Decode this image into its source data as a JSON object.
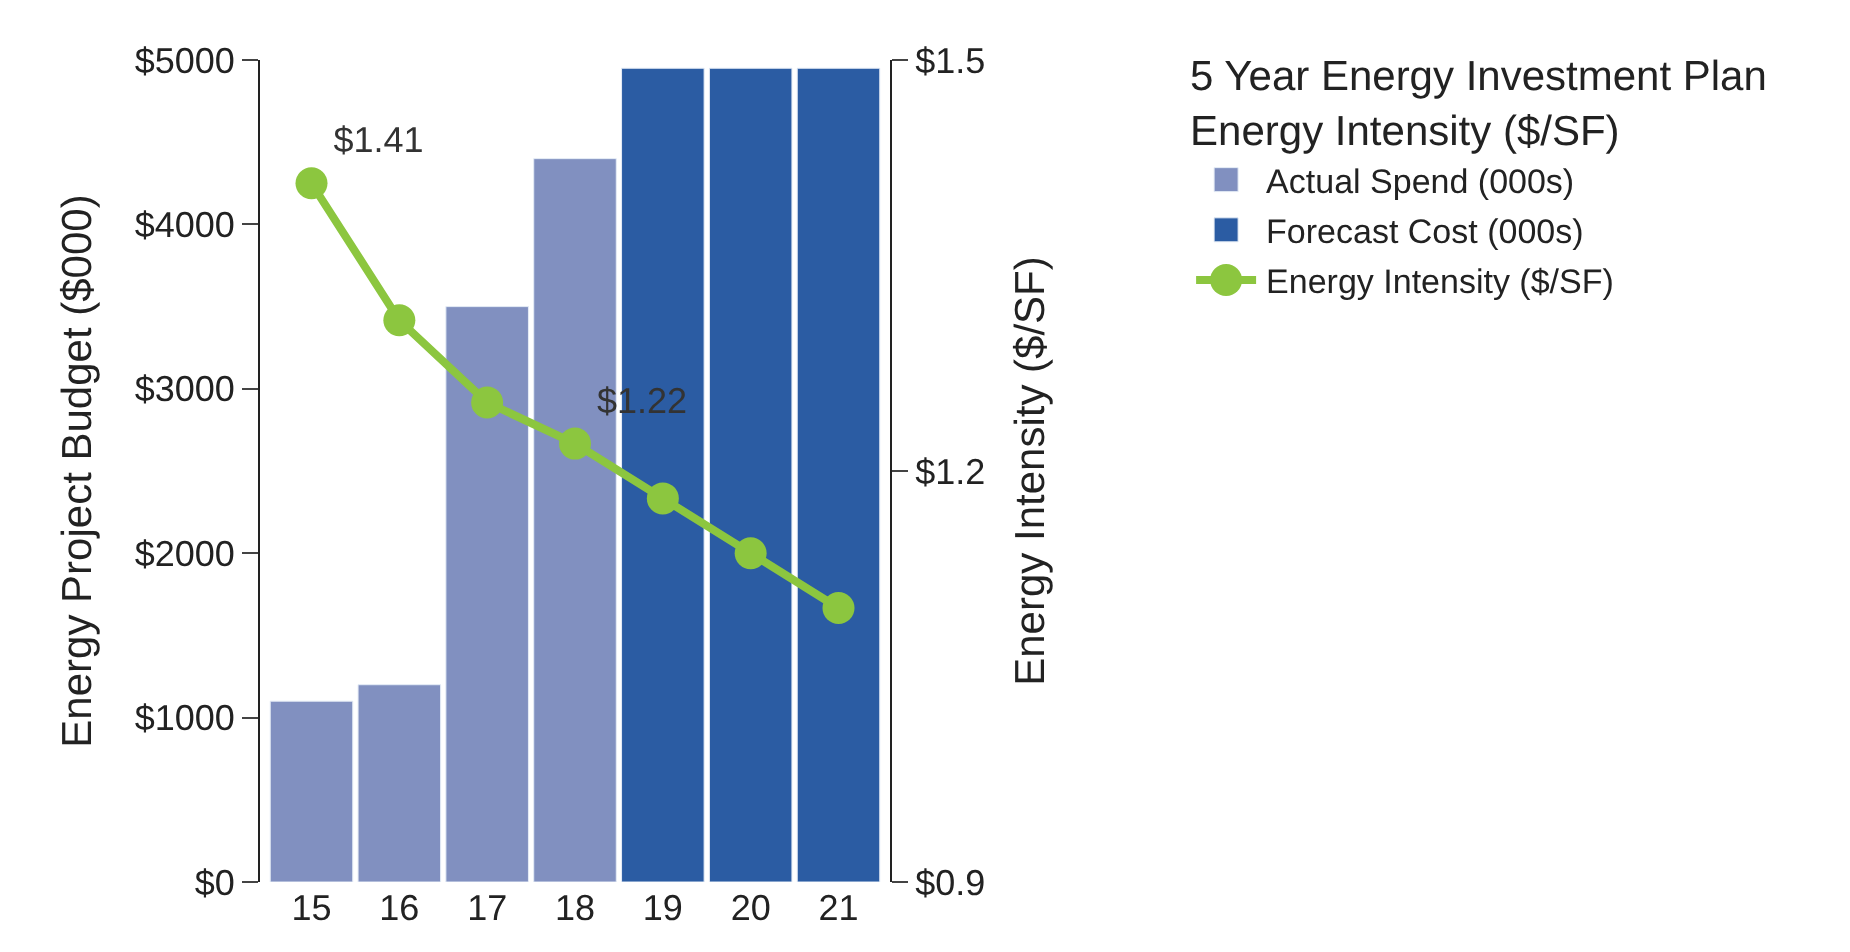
{
  "chart_data": {
    "type": "bar",
    "legend_title": "5 Year Energy Investment Plan\nEnergy Intensity ($/SF)",
    "ylabel": "Energy Project Budget ($000)",
    "y2label": "Energy Intensity ($/SF)",
    "categories": [
      "15",
      "16",
      "17",
      "18",
      "19",
      "20",
      "21"
    ],
    "series": [
      {
        "name": "Actual Spend (000s)",
        "color": "#8190c0",
        "values": [
          1100,
          1200,
          3500,
          4400,
          null,
          null,
          null
        ]
      },
      {
        "name": "Forecast Cost (000s)",
        "color": "#2b5ca3",
        "values": [
          null,
          null,
          null,
          null,
          4950,
          4950,
          4950
        ]
      },
      {
        "name": "Energy Intensity ($/SF)",
        "type": "line",
        "axis": "y2",
        "color": "#8cc63f",
        "marker": "circle",
        "line_style": "solid",
        "values": [
          1.41,
          1.31,
          1.25,
          1.22,
          1.18,
          1.14,
          1.1
        ],
        "value_labels": [
          "$1.41",
          null,
          null,
          "$1.22",
          null,
          null,
          null
        ]
      }
    ],
    "ylim": [
      0,
      5000
    ],
    "yticks": [
      {
        "value": 0,
        "label": "$0"
      },
      {
        "value": 1000,
        "label": "$1000"
      },
      {
        "value": 2000,
        "label": "$2000"
      },
      {
        "value": 3000,
        "label": "$3000"
      },
      {
        "value": 4000,
        "label": "$4000"
      },
      {
        "value": 5000,
        "label": "$5000"
      }
    ],
    "y2lim": [
      0.9,
      1.5
    ],
    "y2ticks": [
      {
        "value": 0.9,
        "label": "$0.9"
      },
      {
        "value": 1.2,
        "label": "$1.2"
      },
      {
        "value": 1.5,
        "label": "$1.5"
      }
    ],
    "legend": "right"
  }
}
